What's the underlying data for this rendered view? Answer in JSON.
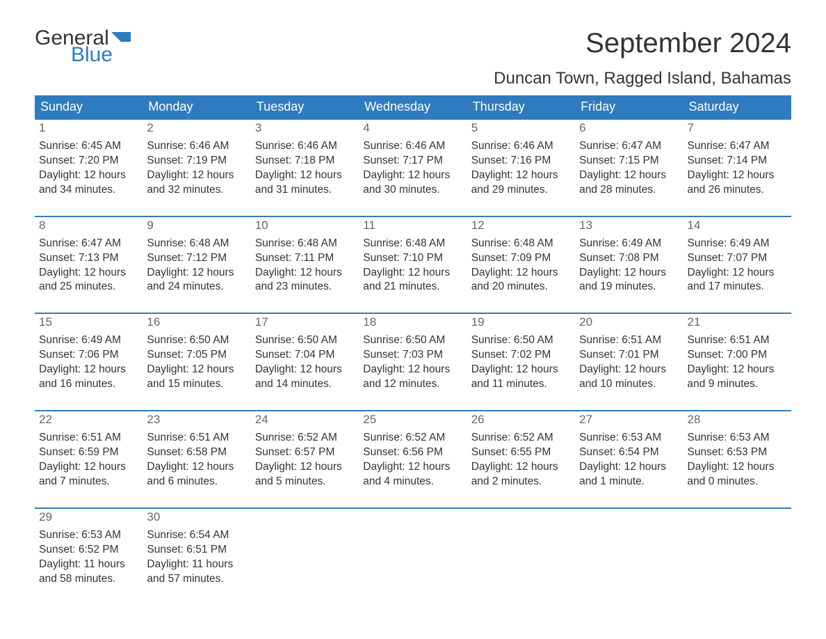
{
  "logo": {
    "text1": "General",
    "text2": "Blue",
    "shape_color": "#2f7bbf"
  },
  "title": "September 2024",
  "location": "Duncan Town, Ragged Island, Bahamas",
  "colors": {
    "header_bg": "#2f7bbf",
    "header_text": "#ffffff",
    "row_divider": "#2f7bbf",
    "daynum_bg": "#eeeeee",
    "daynum_text": "#666666",
    "body_text": "#333333"
  },
  "daysOfWeek": [
    "Sunday",
    "Monday",
    "Tuesday",
    "Wednesday",
    "Thursday",
    "Friday",
    "Saturday"
  ],
  "weeks": [
    [
      {
        "n": "1",
        "sunrise": "6:45 AM",
        "sunset": "7:20 PM",
        "daylight": "12 hours and 34 minutes."
      },
      {
        "n": "2",
        "sunrise": "6:46 AM",
        "sunset": "7:19 PM",
        "daylight": "12 hours and 32 minutes."
      },
      {
        "n": "3",
        "sunrise": "6:46 AM",
        "sunset": "7:18 PM",
        "daylight": "12 hours and 31 minutes."
      },
      {
        "n": "4",
        "sunrise": "6:46 AM",
        "sunset": "7:17 PM",
        "daylight": "12 hours and 30 minutes."
      },
      {
        "n": "5",
        "sunrise": "6:46 AM",
        "sunset": "7:16 PM",
        "daylight": "12 hours and 29 minutes."
      },
      {
        "n": "6",
        "sunrise": "6:47 AM",
        "sunset": "7:15 PM",
        "daylight": "12 hours and 28 minutes."
      },
      {
        "n": "7",
        "sunrise": "6:47 AM",
        "sunset": "7:14 PM",
        "daylight": "12 hours and 26 minutes."
      }
    ],
    [
      {
        "n": "8",
        "sunrise": "6:47 AM",
        "sunset": "7:13 PM",
        "daylight": "12 hours and 25 minutes."
      },
      {
        "n": "9",
        "sunrise": "6:48 AM",
        "sunset": "7:12 PM",
        "daylight": "12 hours and 24 minutes."
      },
      {
        "n": "10",
        "sunrise": "6:48 AM",
        "sunset": "7:11 PM",
        "daylight": "12 hours and 23 minutes."
      },
      {
        "n": "11",
        "sunrise": "6:48 AM",
        "sunset": "7:10 PM",
        "daylight": "12 hours and 21 minutes."
      },
      {
        "n": "12",
        "sunrise": "6:48 AM",
        "sunset": "7:09 PM",
        "daylight": "12 hours and 20 minutes."
      },
      {
        "n": "13",
        "sunrise": "6:49 AM",
        "sunset": "7:08 PM",
        "daylight": "12 hours and 19 minutes."
      },
      {
        "n": "14",
        "sunrise": "6:49 AM",
        "sunset": "7:07 PM",
        "daylight": "12 hours and 17 minutes."
      }
    ],
    [
      {
        "n": "15",
        "sunrise": "6:49 AM",
        "sunset": "7:06 PM",
        "daylight": "12 hours and 16 minutes."
      },
      {
        "n": "16",
        "sunrise": "6:50 AM",
        "sunset": "7:05 PM",
        "daylight": "12 hours and 15 minutes."
      },
      {
        "n": "17",
        "sunrise": "6:50 AM",
        "sunset": "7:04 PM",
        "daylight": "12 hours and 14 minutes."
      },
      {
        "n": "18",
        "sunrise": "6:50 AM",
        "sunset": "7:03 PM",
        "daylight": "12 hours and 12 minutes."
      },
      {
        "n": "19",
        "sunrise": "6:50 AM",
        "sunset": "7:02 PM",
        "daylight": "12 hours and 11 minutes."
      },
      {
        "n": "20",
        "sunrise": "6:51 AM",
        "sunset": "7:01 PM",
        "daylight": "12 hours and 10 minutes."
      },
      {
        "n": "21",
        "sunrise": "6:51 AM",
        "sunset": "7:00 PM",
        "daylight": "12 hours and 9 minutes."
      }
    ],
    [
      {
        "n": "22",
        "sunrise": "6:51 AM",
        "sunset": "6:59 PM",
        "daylight": "12 hours and 7 minutes."
      },
      {
        "n": "23",
        "sunrise": "6:51 AM",
        "sunset": "6:58 PM",
        "daylight": "12 hours and 6 minutes."
      },
      {
        "n": "24",
        "sunrise": "6:52 AM",
        "sunset": "6:57 PM",
        "daylight": "12 hours and 5 minutes."
      },
      {
        "n": "25",
        "sunrise": "6:52 AM",
        "sunset": "6:56 PM",
        "daylight": "12 hours and 4 minutes."
      },
      {
        "n": "26",
        "sunrise": "6:52 AM",
        "sunset": "6:55 PM",
        "daylight": "12 hours and 2 minutes."
      },
      {
        "n": "27",
        "sunrise": "6:53 AM",
        "sunset": "6:54 PM",
        "daylight": "12 hours and 1 minute."
      },
      {
        "n": "28",
        "sunrise": "6:53 AM",
        "sunset": "6:53 PM",
        "daylight": "12 hours and 0 minutes."
      }
    ],
    [
      {
        "n": "29",
        "sunrise": "6:53 AM",
        "sunset": "6:52 PM",
        "daylight": "11 hours and 58 minutes."
      },
      {
        "n": "30",
        "sunrise": "6:54 AM",
        "sunset": "6:51 PM",
        "daylight": "11 hours and 57 minutes."
      },
      null,
      null,
      null,
      null,
      null
    ]
  ]
}
